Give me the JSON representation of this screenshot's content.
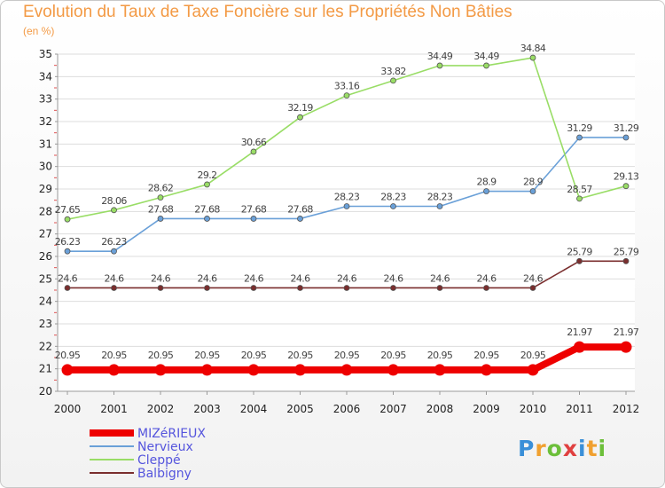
{
  "title": "Evolution du Taux de Taxe Foncière sur les Propriétés Non Bâties",
  "subtitle": "(en %)",
  "logo": "Proxiti",
  "chart_data": {
    "type": "line",
    "title": "Evolution du Taux de Taxe Foncière sur les Propriétés Non Bâties",
    "ylabel": "(en %)",
    "xlabel": "",
    "x": [
      2000,
      2001,
      2002,
      2003,
      2004,
      2005,
      2006,
      2007,
      2008,
      2009,
      2010,
      2011,
      2012
    ],
    "ylim": [
      20,
      35
    ],
    "yticks": [
      20,
      21,
      22,
      23,
      24,
      25,
      26,
      27,
      28,
      29,
      30,
      31,
      32,
      33,
      34,
      35
    ],
    "grid": "horizontal",
    "legend_position": "bottom-left",
    "series": [
      {
        "name": "MIZéRIEUX",
        "color": "#ee0000",
        "values": [
          20.95,
          20.95,
          20.95,
          20.95,
          20.95,
          20.95,
          20.95,
          20.95,
          20.95,
          20.95,
          20.95,
          21.97,
          21.97
        ],
        "labels": [
          "20.95",
          "20.95",
          "20.95",
          "20.95",
          "20.95",
          "20.95",
          "20.95",
          "20.95",
          "20.95",
          "20.95",
          "20.95",
          "21.97",
          "21.97"
        ]
      },
      {
        "name": "Nervieux",
        "color": "#6aa0d8",
        "values": [
          26.23,
          26.23,
          27.68,
          27.68,
          27.68,
          27.68,
          28.23,
          28.23,
          28.23,
          28.9,
          28.9,
          31.29,
          31.29
        ],
        "labels": [
          "26.23",
          "26.23",
          "27.68",
          "27.68",
          "27.68",
          "27.68",
          "28.23",
          "28.23",
          "28.23",
          "28.9",
          "28.9",
          "31.29",
          "31.29"
        ]
      },
      {
        "name": "Cleppé",
        "color": "#99dd66",
        "values": [
          27.65,
          28.06,
          28.62,
          29.2,
          30.66,
          32.19,
          33.16,
          33.82,
          34.49,
          34.49,
          34.84,
          28.57,
          29.13
        ],
        "labels": [
          "27.65",
          "28.06",
          "28.62",
          "29.2",
          "30.66",
          "32.19",
          "33.16",
          "33.82",
          "34.49",
          "34.49",
          "34.84",
          "28.57",
          "29.13"
        ]
      },
      {
        "name": "Balbigny",
        "color": "#7a2e2e",
        "values": [
          24.6,
          24.6,
          24.6,
          24.6,
          24.6,
          24.6,
          24.6,
          24.6,
          24.6,
          24.6,
          24.6,
          25.79,
          25.79
        ],
        "labels": [
          "24.6",
          "24.6",
          "24.6",
          "24.6",
          "24.6",
          "24.6",
          "24.6",
          "24.6",
          "24.6",
          "24.6",
          "24.6",
          "25.79",
          "25.79"
        ]
      }
    ]
  }
}
